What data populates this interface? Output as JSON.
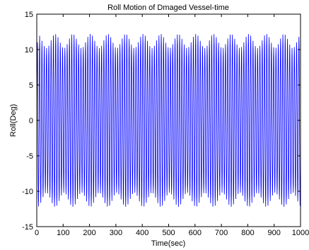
{
  "chart_data": {
    "type": "line",
    "title": "Roll Motion of Dmaged Vessel-time",
    "xlabel": "Time(sec)",
    "ylabel": "Roll(Deg)",
    "xlim": [
      0,
      1000
    ],
    "ylim": [
      -15,
      15
    ],
    "xticks": [
      0,
      100,
      200,
      300,
      400,
      500,
      600,
      700,
      800,
      900,
      1000
    ],
    "yticks": [
      -15,
      -10,
      -5,
      0,
      5,
      10,
      15
    ],
    "grid": false,
    "line_color": "#0000ff",
    "series": [
      {
        "signal": "oscillation",
        "period_sec": 8.7,
        "envelope_mean_amplitude_deg": 11.2,
        "envelope_variation_deg": 1.0,
        "envelope_period_sec": 66.7,
        "envelope_peak_amplitude_deg": 12.3,
        "envelope_min_amplitude_deg": 10.0,
        "envelope_first_peak_sec": 70,
        "initial_value_deg": 0,
        "initial_ramp_amplitude_deg": 8,
        "initial_ramp_sec": 3
      }
    ]
  }
}
